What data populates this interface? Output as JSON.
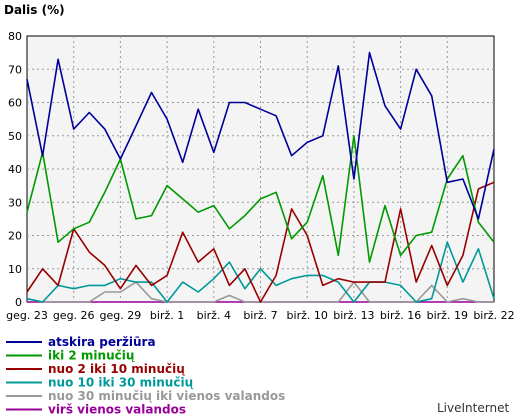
{
  "chart_data": {
    "type": "line",
    "title": "Dalis (%)",
    "ylim": [
      0,
      80
    ],
    "yticks": [
      0,
      10,
      20,
      30,
      40,
      50,
      60,
      70,
      80
    ],
    "x_labels": [
      "geg. 23",
      "geg. 26",
      "geg. 29",
      "birž. 1",
      "birž. 4",
      "birž. 7",
      "birž. 10",
      "birž. 13",
      "birž. 16",
      "birž. 19",
      "birž. 22"
    ],
    "grid": true,
    "legend_position": "bottom-left",
    "series": [
      {
        "name": "atskira peržiūra",
        "color": "#000099",
        "values": [
          67,
          44,
          73,
          52,
          57,
          52,
          43,
          53,
          63,
          55,
          42,
          58,
          45,
          60,
          60,
          58,
          56,
          44,
          48,
          50,
          71,
          37,
          75,
          59,
          52,
          70,
          62,
          36,
          37,
          25,
          46
        ]
      },
      {
        "name": "iki 2 minučių",
        "color": "#009900",
        "values": [
          27,
          45,
          18,
          22,
          24,
          33,
          43,
          25,
          26,
          35,
          31,
          27,
          29,
          22,
          26,
          31,
          33,
          19,
          24,
          38,
          14,
          50,
          12,
          29,
          14,
          20,
          21,
          37,
          44,
          24,
          18
        ]
      },
      {
        "name": "nuo 2 iki 10 minučių",
        "color": "#990000",
        "values": [
          3,
          10,
          5,
          22,
          15,
          11,
          4,
          11,
          5,
          8,
          21,
          12,
          16,
          5,
          10,
          0,
          8,
          28,
          20,
          5,
          7,
          6,
          6,
          6,
          28,
          6,
          17,
          5,
          14,
          34,
          36
        ]
      },
      {
        "name": "nuo 10 iki 30 minučių",
        "color": "#009999",
        "values": [
          1,
          0,
          5,
          4,
          5,
          5,
          7,
          6,
          6,
          0,
          6,
          3,
          7,
          12,
          4,
          10,
          5,
          7,
          8,
          8,
          6,
          0,
          6,
          6,
          5,
          0,
          1,
          18,
          6,
          16,
          1
        ]
      },
      {
        "name": "nuo 30 minučių iki vienos valandos",
        "color": "#999999",
        "values": [
          1,
          0,
          0,
          0,
          0,
          3,
          3,
          6,
          1,
          0,
          0,
          0,
          0,
          2,
          0,
          0,
          0,
          0,
          0,
          0,
          0,
          6,
          0,
          0,
          0,
          0,
          5,
          0,
          1,
          0,
          0
        ]
      },
      {
        "name": "virš vienos valandos",
        "color": "#990099",
        "values": [
          0,
          0,
          0,
          0,
          0,
          0,
          0,
          0,
          0,
          0,
          0,
          0,
          0,
          0,
          0,
          0,
          0,
          0,
          0,
          0,
          0,
          0,
          0,
          0,
          0,
          0,
          0,
          0,
          0,
          0,
          0
        ]
      }
    ]
  },
  "brand": "LiveInternet"
}
